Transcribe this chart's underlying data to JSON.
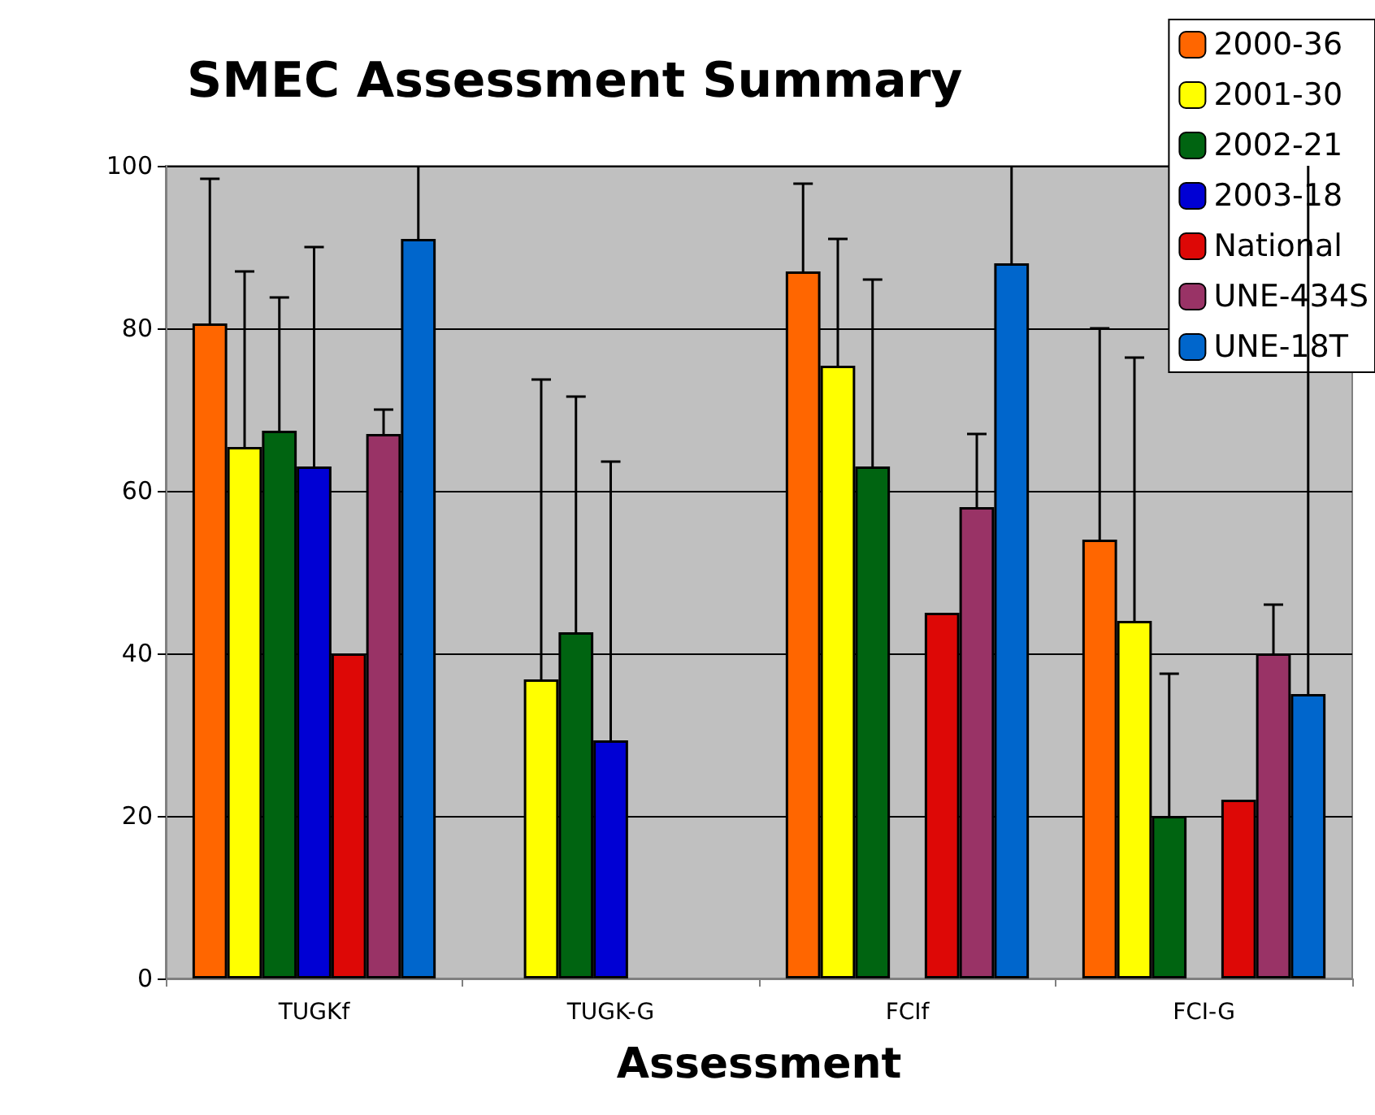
{
  "chart_data": {
    "type": "bar",
    "title": "SMEC Assessment Summary",
    "xlabel": "Assessment",
    "categories": [
      "TUGKf",
      "TUGK-G",
      "FCIf",
      "FCI-G"
    ],
    "ylim": [
      0,
      100
    ],
    "yticks": [
      0,
      20,
      40,
      60,
      80,
      100
    ],
    "grid": "y",
    "legend": "top right",
    "series": [
      {
        "name": "2000-36",
        "color": "#ff6600",
        "values": [
          80.6,
          null,
          87,
          54
        ],
        "errors": [
          [
            80.6,
            98.4
          ],
          null,
          [
            87,
            97.8
          ],
          [
            54,
            80
          ]
        ]
      },
      {
        "name": "2001-30",
        "color": "#ffff00",
        "values": [
          65.4,
          36.8,
          75.4,
          44
        ],
        "errors": [
          [
            65.4,
            87
          ],
          [
            36.8,
            73.7
          ],
          [
            75.4,
            91
          ],
          [
            44,
            76.4
          ]
        ]
      },
      {
        "name": "2002-21",
        "color": "#006411",
        "values": [
          67.4,
          42.6,
          63,
          20
        ],
        "errors": [
          [
            67.4,
            83.8
          ],
          [
            42.6,
            71.6
          ],
          [
            63,
            86
          ],
          [
            20,
            37.5
          ]
        ]
      },
      {
        "name": "2003-18",
        "color": "#0000d4",
        "values": [
          63,
          29.3,
          null,
          null
        ],
        "errors": [
          [
            63,
            90
          ],
          [
            29.3,
            63.6
          ],
          null,
          null
        ]
      },
      {
        "name": "National",
        "color": "#dd0806",
        "values": [
          40,
          null,
          45,
          22
        ]
      },
      {
        "name": "UNE-434S",
        "color": "#993366",
        "values": [
          67,
          null,
          58,
          40
        ],
        "errors": [
          [
            67,
            70
          ],
          null,
          [
            58,
            67
          ],
          [
            40,
            46
          ]
        ]
      },
      {
        "name": "UNE-18T",
        "color": "#0066cc",
        "values": [
          91,
          null,
          88,
          35
        ],
        "errors": [
          [
            91,
            100
          ],
          null,
          [
            88,
            100
          ],
          [
            35,
            100
          ]
        ]
      }
    ]
  }
}
